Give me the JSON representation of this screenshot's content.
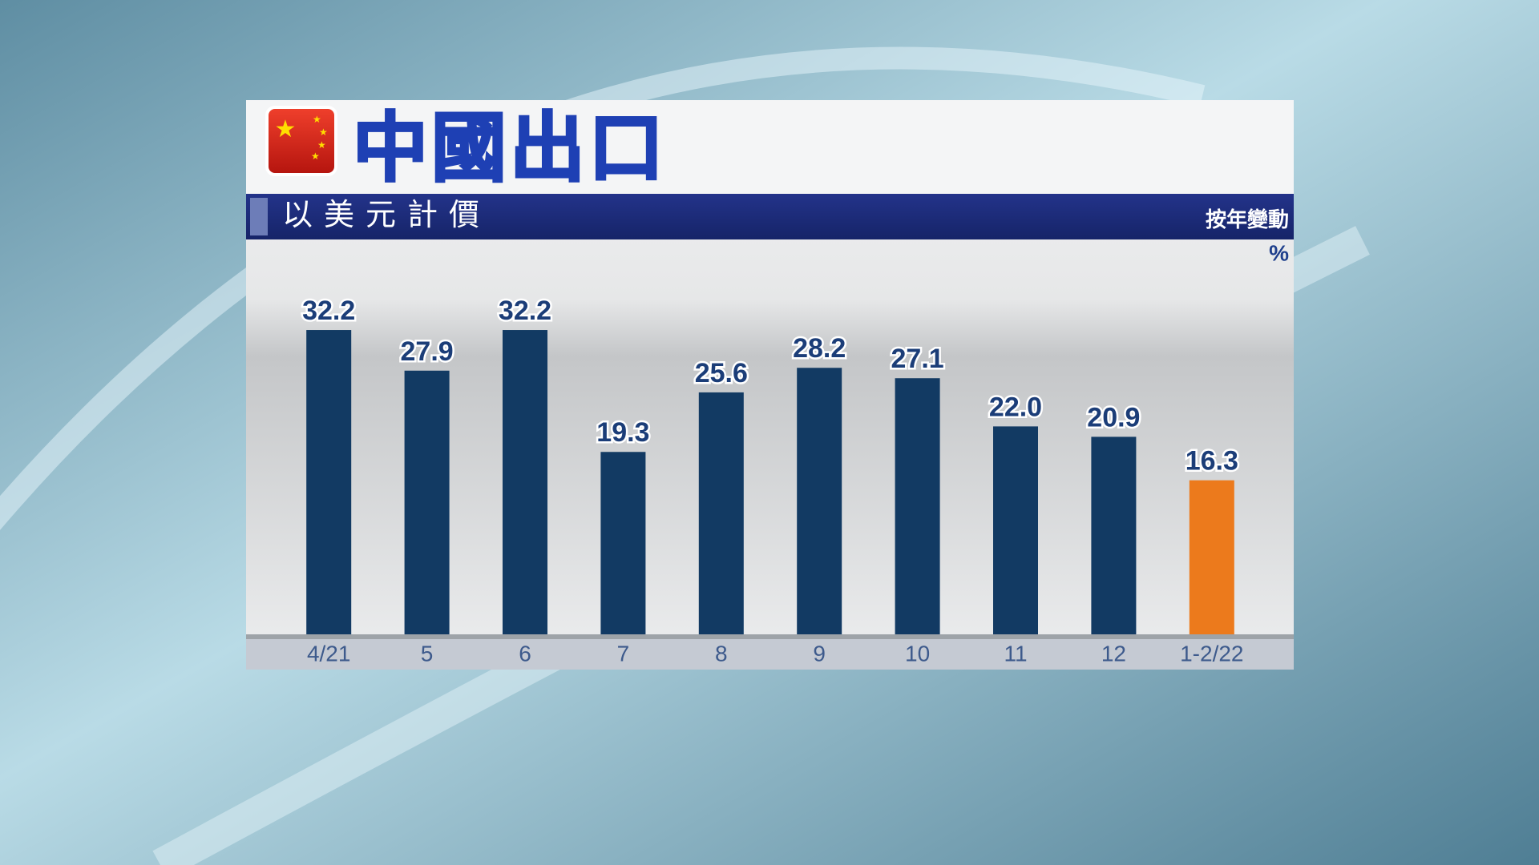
{
  "chart_data": {
    "type": "bar",
    "title": "中國出口",
    "subtitle": "以美元計價",
    "y_label": "按年變動",
    "y_unit": "%",
    "categories": [
      "4/21",
      "5",
      "6",
      "7",
      "8",
      "9",
      "10",
      "11",
      "12",
      "1-2/22"
    ],
    "values": [
      32.2,
      27.9,
      32.2,
      19.3,
      25.6,
      28.2,
      27.1,
      22.0,
      20.9,
      16.3
    ],
    "value_labels": [
      "32.2",
      "27.9",
      "32.2",
      "19.3",
      "25.6",
      "28.2",
      "27.1",
      "22.0",
      "20.9",
      "16.3"
    ],
    "colors": [
      "#123a63",
      "#123a63",
      "#123a63",
      "#123a63",
      "#123a63",
      "#123a63",
      "#123a63",
      "#123a63",
      "#123a63",
      "#ec7a1c"
    ],
    "ylim": [
      0,
      40
    ]
  }
}
